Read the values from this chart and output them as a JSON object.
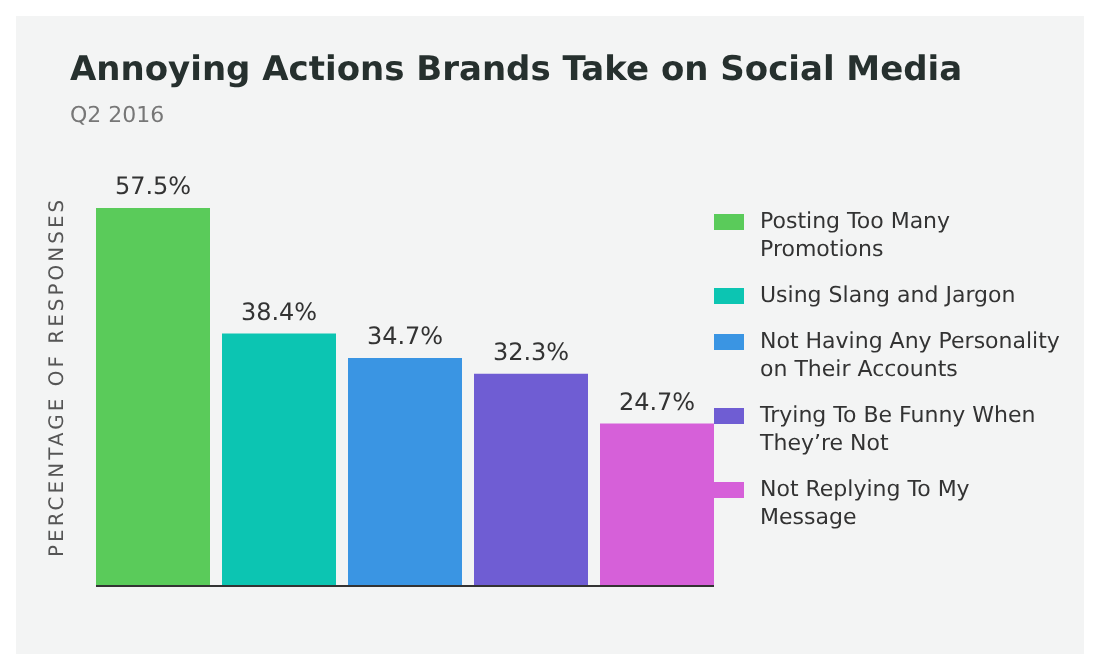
{
  "chart_data": {
    "type": "bar",
    "title": "Annoying Actions Brands Take on Social Media",
    "subtitle": "Q2 2016",
    "ylabel": "PERCENTAGE OF RESPONSES",
    "categories": [
      null
    ],
    "legend": "right",
    "series": [
      {
        "name": "Posting Too Many Promotions",
        "color": "#5acb5a",
        "values": [
          57.5
        ],
        "value_labels": [
          "57.5%"
        ]
      },
      {
        "name": "Using Slang and Jargon",
        "color": "#0cc5b2",
        "values": [
          38.4
        ],
        "value_labels": [
          "38.4%"
        ]
      },
      {
        "name": "Not Having Any Personality on Their Accounts",
        "color": "#3a95e3",
        "values": [
          34.7
        ],
        "value_labels": [
          "34.7%"
        ]
      },
      {
        "name": "Trying To Be Funny When They’re Not",
        "color": "#6f5dd3",
        "values": [
          32.3
        ],
        "value_labels": [
          "32.3%"
        ]
      },
      {
        "name": "Not Replying To My Message",
        "color": "#d660d9",
        "values": [
          24.7
        ],
        "value_labels": [
          "24.7%"
        ]
      }
    ]
  }
}
